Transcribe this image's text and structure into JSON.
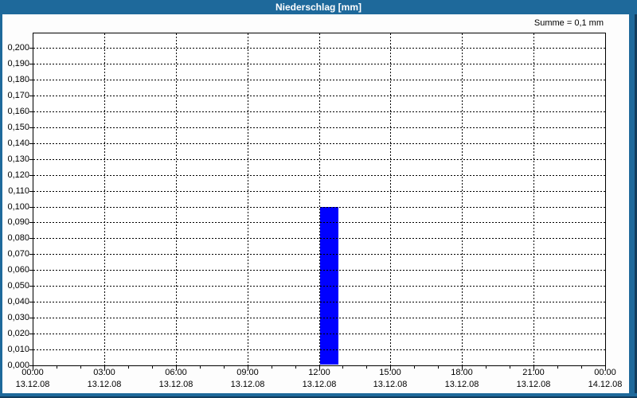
{
  "window": {
    "title": "Niederschlag [mm]"
  },
  "chart_data": {
    "type": "bar",
    "title": "Niederschlag [mm]",
    "annotation": "Summe = 0,1 mm",
    "xlabel": "",
    "ylabel": "",
    "ylim": [
      0,
      0.21
    ],
    "y_tick_step": 0.01,
    "y_tick_labels": [
      "0,000",
      "0,010",
      "0,020",
      "0,030",
      "0,040",
      "0,050",
      "0,060",
      "0,070",
      "0,080",
      "0,090",
      "0,100",
      "0,110",
      "0,120",
      "0,130",
      "0,140",
      "0,150",
      "0,160",
      "0,170",
      "0,180",
      "0,190",
      "0,200"
    ],
    "x_ticks": [
      {
        "time": "00:00",
        "date": "13.12.08"
      },
      {
        "time": "03:00",
        "date": "13.12.08"
      },
      {
        "time": "06:00",
        "date": "13.12.08"
      },
      {
        "time": "09:00",
        "date": "13.12.08"
      },
      {
        "time": "12:00",
        "date": "13.12.08"
      },
      {
        "time": "15:00",
        "date": "13.12.08"
      },
      {
        "time": "18:00",
        "date": "13.12.08"
      },
      {
        "time": "21:00",
        "date": "13.12.08"
      },
      {
        "time": "00:00",
        "date": "14.12.08"
      }
    ],
    "minor_ticks_per_major": 3,
    "grid": "dotted",
    "legend_position": "none",
    "bars": [
      {
        "start_time": "12:00",
        "date": "13.12.08",
        "value": 0.1,
        "display_value": "0,1"
      }
    ]
  },
  "colors": {
    "titlebar": "#1E699B",
    "frame": "#1E699B",
    "frame_edge": "#123C5D",
    "bar": "#0000FF",
    "grid": "#000000",
    "axis": "#000000",
    "plot_background": "#FFFFFF",
    "title_text": "#FFFFFF",
    "label_text": "#000000"
  }
}
